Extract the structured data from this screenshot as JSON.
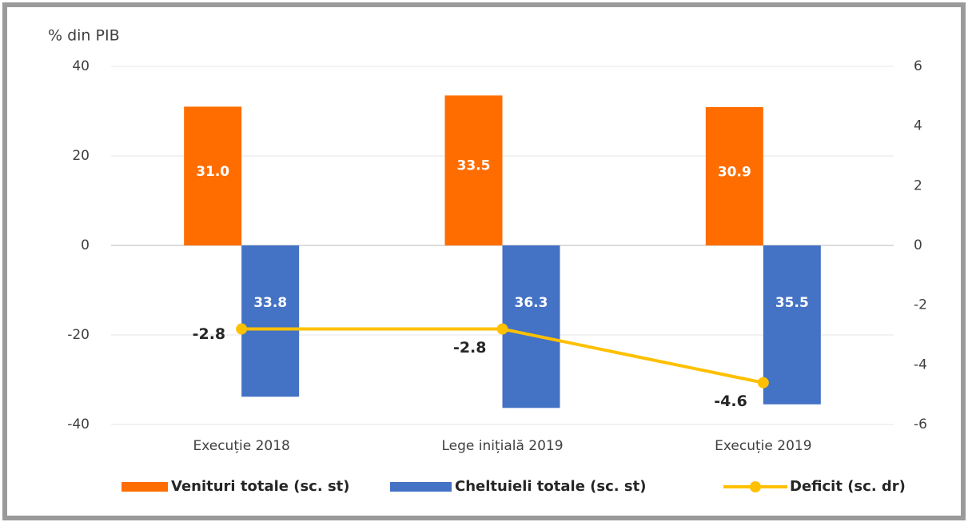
{
  "chart_data": {
    "type": "bar",
    "y_label": "% din PIB",
    "categories": [
      "Execuție 2018",
      "Lege inițială 2019",
      "Execuție 2019"
    ],
    "series": [
      {
        "name": "Venituri totale (sc. st)",
        "color": "#ff6d00",
        "values": [
          31.0,
          33.5,
          30.9
        ],
        "value_labels": [
          "31.0",
          "33.5",
          "30.9"
        ]
      },
      {
        "name": "Cheltuieli totale (sc. st)",
        "color": "#4472c4",
        "values": [
          -33.8,
          -36.3,
          -35.5
        ],
        "value_labels": [
          "33.8",
          "36.3",
          "35.5"
        ]
      },
      {
        "name": "Deficit (sc. dr)",
        "type": "line",
        "axis": "y2",
        "color": "#ffc000",
        "values": [
          -2.8,
          -2.8,
          -4.6
        ]
      }
    ],
    "ylim": [
      -40,
      40
    ],
    "yticks": [
      -40,
      -20,
      0,
      20,
      40
    ],
    "y2lim": [
      -6,
      6
    ],
    "y2ticks": [
      -6,
      -4,
      -2,
      0,
      2,
      4,
      6
    ],
    "grid": true
  }
}
